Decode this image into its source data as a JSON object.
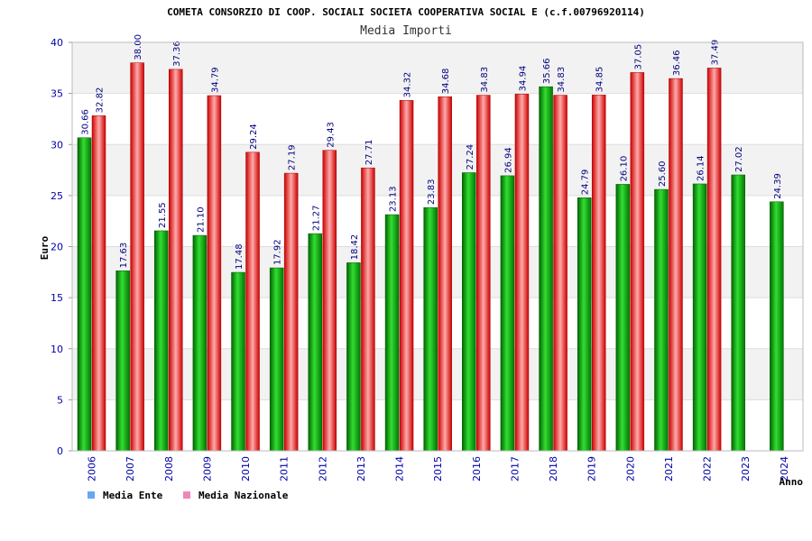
{
  "chart_data": {
    "type": "bar",
    "title": "COMETA CONSORZIO DI COOP. SOCIALI SOCIETA COOPERATIVA SOCIAL E (c.f.00796920114)",
    "subtitle": "Media Importi",
    "xlabel": "Anno",
    "ylabel": "Euro",
    "ylim": [
      0,
      40
    ],
    "yticks": [
      0,
      5,
      10,
      15,
      20,
      25,
      30,
      35,
      40
    ],
    "grid": true,
    "legend_position": "bottom-left",
    "categories": [
      "2006",
      "2007",
      "2008",
      "2009",
      "2010",
      "2011",
      "2012",
      "2013",
      "2014",
      "2015",
      "2016",
      "2017",
      "2018",
      "2019",
      "2020",
      "2021",
      "2022",
      "2023",
      "2024"
    ],
    "series": [
      {
        "name": "Media Ente",
        "legend_color": "#66aaee",
        "bar_color": "#00aa00",
        "values": [
          30.66,
          17.63,
          21.55,
          21.1,
          17.48,
          17.92,
          21.27,
          18.42,
          23.13,
          23.83,
          27.24,
          26.94,
          35.66,
          24.79,
          26.1,
          25.6,
          26.14,
          27.02,
          24.39
        ],
        "labels": [
          "30.66",
          "17.63",
          "21.55",
          "21.10",
          "17.48",
          "17.92",
          "21.27",
          "18.42",
          "23.13",
          "23.83",
          "27.24",
          "26.94",
          "35.66",
          "24.79",
          "26.10",
          "25.60",
          "26.14",
          "27.02",
          "24.39"
        ]
      },
      {
        "name": "Media Nazionale",
        "legend_color": "#ee88bb",
        "bar_color": "#ee2222",
        "values": [
          32.82,
          38.0,
          37.36,
          34.79,
          29.24,
          27.19,
          29.43,
          27.71,
          34.32,
          34.68,
          34.83,
          34.94,
          34.83,
          34.85,
          37.05,
          36.46,
          37.49,
          null,
          null
        ],
        "labels": [
          "32.82",
          "38.00",
          "37.36",
          "34.79",
          "29.24",
          "27.19",
          "29.43",
          "27.71",
          "34.32",
          "34.68",
          "34.83",
          "34.94",
          "34.83",
          "34.85",
          "37.05",
          "36.46",
          "37.49",
          "",
          ""
        ]
      }
    ]
  }
}
